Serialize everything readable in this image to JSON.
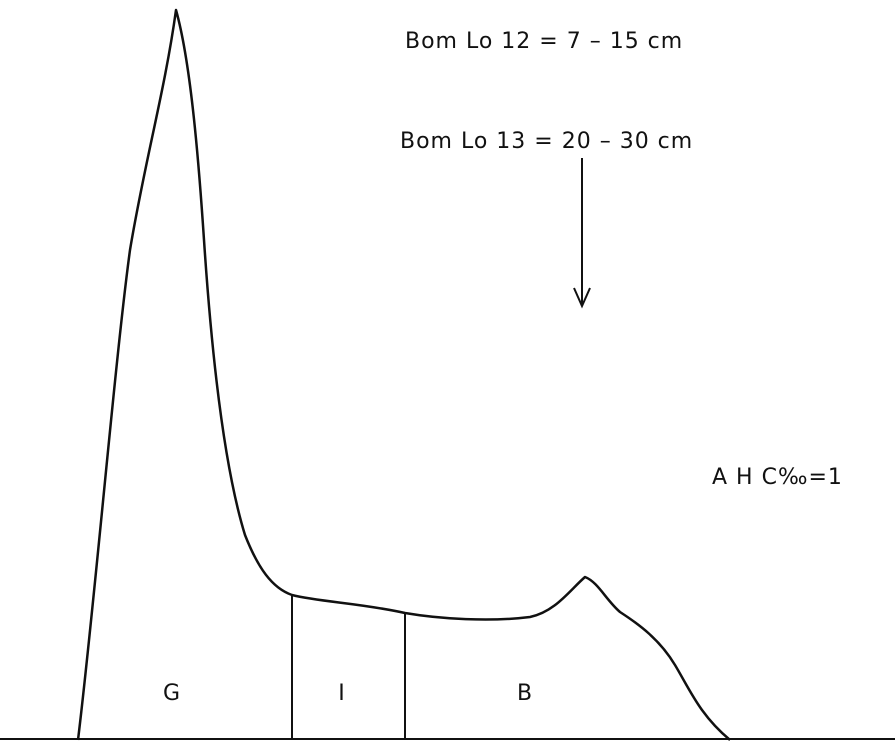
{
  "labels": {
    "line1": "Bom Lo 12 = 7 – 15 cm",
    "line2": "Bom Lo 13 = 20 – 30 cm",
    "side": "A H  C‰=1"
  },
  "regions": [
    "G",
    "I",
    "B"
  ]
}
